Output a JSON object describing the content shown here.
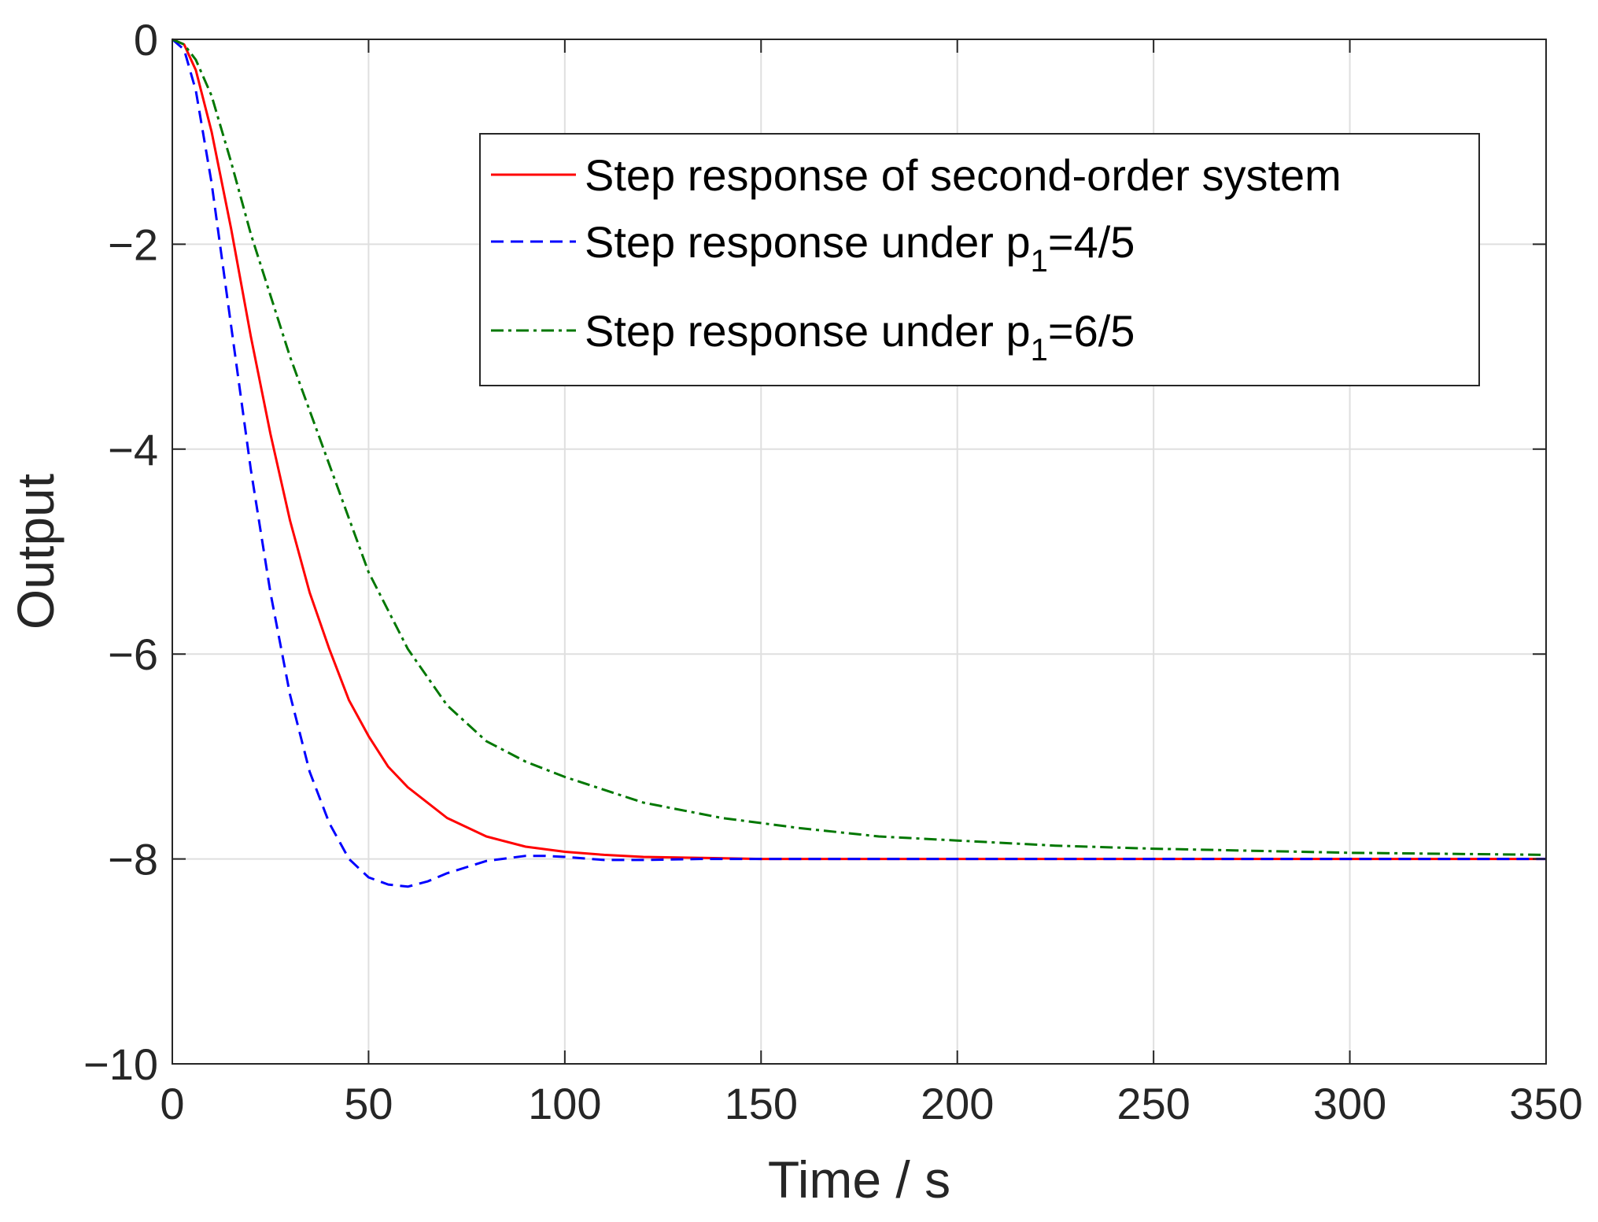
{
  "chart_data": {
    "type": "line",
    "xlabel": "Time / s",
    "ylabel": "Output",
    "xlim": [
      0,
      350
    ],
    "ylim": [
      -10,
      0
    ],
    "xticks": [
      0,
      50,
      100,
      150,
      200,
      250,
      300,
      350
    ],
    "yticks": [
      0,
      -2,
      -4,
      -6,
      -8,
      -10
    ],
    "xtick_labels": [
      "0",
      "50",
      "100",
      "150",
      "200",
      "250",
      "300",
      "350"
    ],
    "ytick_labels": [
      "0",
      "−2",
      "−4",
      "−6",
      "−8",
      "−10"
    ],
    "grid": true,
    "legend_position": "top-right",
    "series": [
      {
        "name": "Step response of second-order system",
        "legend": {
          "main": "Step response of second-order system",
          "sub": "",
          "post": ""
        },
        "color": "#ff0000",
        "dash": "solid",
        "x": [
          0,
          3,
          6,
          10,
          15,
          20,
          25,
          30,
          35,
          40,
          45,
          50,
          55,
          60,
          70,
          80,
          90,
          100,
          110,
          120,
          135,
          150,
          175,
          200,
          250,
          300,
          350
        ],
        "y": [
          0,
          -0.05,
          -0.3,
          -0.9,
          -1.85,
          -2.9,
          -3.85,
          -4.7,
          -5.4,
          -5.95,
          -6.45,
          -6.8,
          -7.1,
          -7.3,
          -7.6,
          -7.78,
          -7.88,
          -7.93,
          -7.96,
          -7.98,
          -7.99,
          -8.0,
          -8.0,
          -8.0,
          -8.0,
          -8.0,
          -8.0
        ]
      },
      {
        "name": "Step response under p1=4/5",
        "legend": {
          "main": "Step response under p",
          "sub": "1",
          "post": "=4/5"
        },
        "color": "#0000ff",
        "dash": "dashed",
        "x": [
          0,
          3,
          6,
          10,
          15,
          20,
          25,
          30,
          35,
          40,
          45,
          50,
          55,
          60,
          65,
          70,
          80,
          90,
          95,
          100,
          110,
          120,
          135,
          150,
          200,
          250,
          300,
          350
        ],
        "y": [
          0,
          -0.1,
          -0.5,
          -1.4,
          -2.8,
          -4.2,
          -5.4,
          -6.4,
          -7.15,
          -7.65,
          -8.0,
          -8.18,
          -8.25,
          -8.27,
          -8.22,
          -8.14,
          -8.02,
          -7.97,
          -7.97,
          -7.98,
          -8.01,
          -8.01,
          -8.0,
          -8.0,
          -8.0,
          -8.0,
          -8.0,
          -8.0
        ]
      },
      {
        "name": "Step response under p1=6/5",
        "legend": {
          "main": "Step response under p",
          "sub": "1",
          "post": "=6/5"
        },
        "color": "#007700",
        "dash": "dashdot",
        "x": [
          0,
          3,
          6,
          10,
          15,
          20,
          30,
          40,
          50,
          60,
          70,
          80,
          90,
          100,
          120,
          140,
          160,
          180,
          200,
          225,
          250,
          275,
          300,
          325,
          350
        ],
        "y": [
          0,
          -0.05,
          -0.2,
          -0.55,
          -1.2,
          -1.9,
          -3.1,
          -4.15,
          -5.2,
          -5.95,
          -6.5,
          -6.85,
          -7.05,
          -7.2,
          -7.45,
          -7.6,
          -7.7,
          -7.78,
          -7.82,
          -7.87,
          -7.9,
          -7.92,
          -7.94,
          -7.95,
          -7.96
        ]
      }
    ]
  }
}
